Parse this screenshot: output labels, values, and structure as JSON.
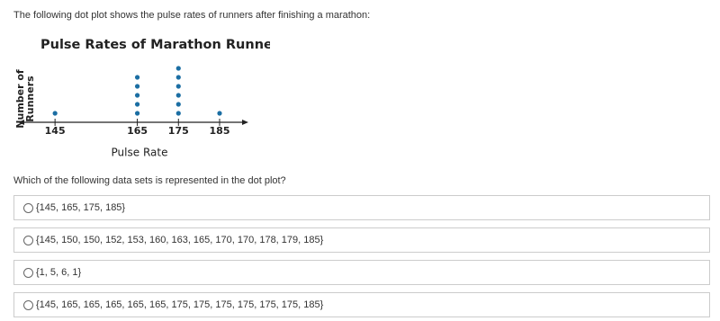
{
  "prompt": "The following dot plot shows the pulse rates of runners after finishing a marathon:",
  "chart_data": {
    "type": "dot",
    "title": "Pulse Rates of Marathon Runners",
    "xlabel": "Pulse Rate",
    "ylabel": [
      "Number of",
      "Runners"
    ],
    "x": [
      145,
      165,
      175,
      185
    ],
    "values": [
      1,
      5,
      6,
      1
    ],
    "color": "#1b6ea3",
    "xlim": [
      136,
      192
    ],
    "xticks": [
      145,
      165,
      175,
      185
    ]
  },
  "question": "Which of the following data sets is represented in the dot plot?",
  "options": [
    "{145, 165, 175, 185}",
    "{145, 150, 150, 152, 153, 160, 163, 165, 170, 170, 178, 179, 185}",
    "{1, 5, 6, 1}",
    "{145, 165, 165, 165, 165, 165, 175, 175, 175, 175, 175, 175, 185}"
  ]
}
